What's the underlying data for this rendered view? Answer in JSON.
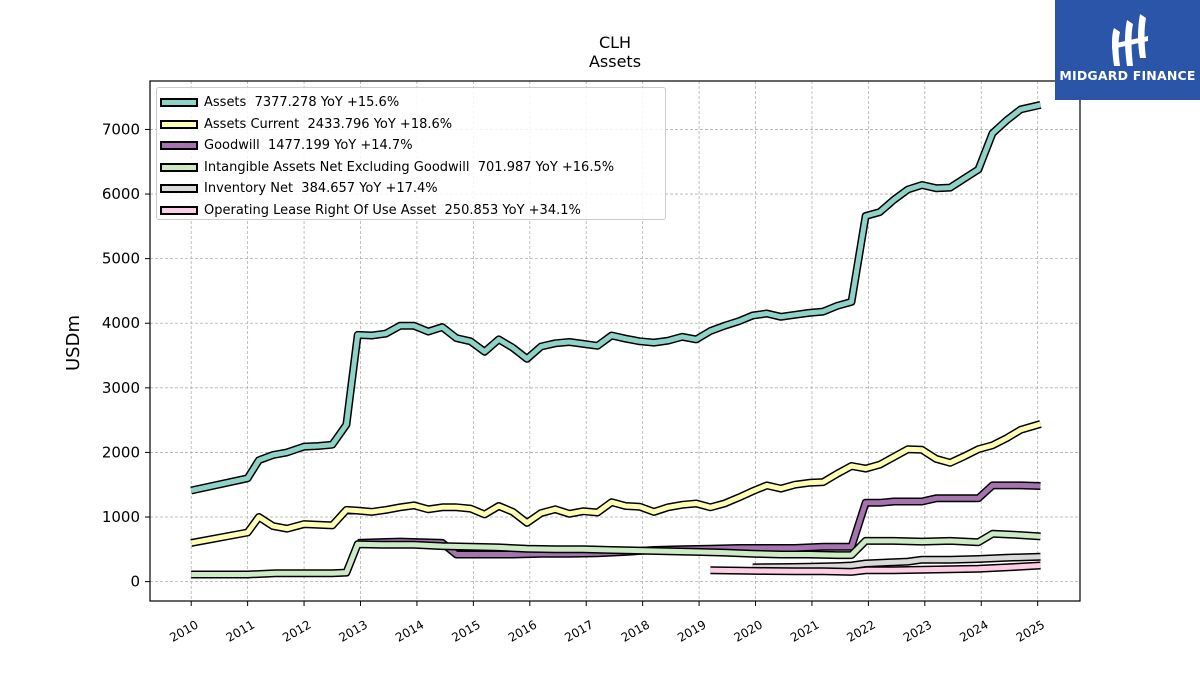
{
  "brand": {
    "name": "MIDGARD FINANCE",
    "bg": "#2b55a8"
  },
  "chart_data": {
    "type": "line",
    "title": "CLH",
    "subtitle": "Assets",
    "ylabel": "USDm",
    "xlabel": "",
    "xlim": [
      2009.27,
      2025.75
    ],
    "ylim": [
      -300,
      7750
    ],
    "xticks": [
      2010,
      2011,
      2012,
      2013,
      2014,
      2015,
      2016,
      2017,
      2018,
      2019,
      2020,
      2021,
      2022,
      2023,
      2024,
      2025
    ],
    "yticks": [
      0,
      1000,
      2000,
      3000,
      4000,
      5000,
      6000,
      7000
    ],
    "grid": true,
    "legend_position": "top-left",
    "series": [
      {
        "name": "Assets",
        "legend": "Assets  7377.278 YoY +15.6%",
        "color": "#8dd3c7",
        "points": [
          [
            2010.0,
            1410
          ],
          [
            2011.0,
            1600
          ],
          [
            2011.2,
            1880
          ],
          [
            2011.45,
            1960
          ],
          [
            2011.7,
            2000
          ],
          [
            2012.0,
            2090
          ],
          [
            2012.25,
            2100
          ],
          [
            2012.5,
            2120
          ],
          [
            2012.75,
            2430
          ],
          [
            2012.95,
            3820
          ],
          [
            2013.2,
            3810
          ],
          [
            2013.45,
            3840
          ],
          [
            2013.7,
            3960
          ],
          [
            2013.95,
            3960
          ],
          [
            2014.2,
            3870
          ],
          [
            2014.45,
            3940
          ],
          [
            2014.7,
            3770
          ],
          [
            2014.95,
            3720
          ],
          [
            2015.2,
            3560
          ],
          [
            2015.45,
            3750
          ],
          [
            2015.7,
            3620
          ],
          [
            2015.95,
            3450
          ],
          [
            2016.2,
            3640
          ],
          [
            2016.45,
            3690
          ],
          [
            2016.7,
            3710
          ],
          [
            2016.95,
            3680
          ],
          [
            2017.2,
            3650
          ],
          [
            2017.45,
            3810
          ],
          [
            2017.7,
            3760
          ],
          [
            2017.95,
            3720
          ],
          [
            2018.2,
            3700
          ],
          [
            2018.45,
            3730
          ],
          [
            2018.7,
            3790
          ],
          [
            2018.95,
            3750
          ],
          [
            2019.2,
            3880
          ],
          [
            2019.45,
            3960
          ],
          [
            2019.7,
            4030
          ],
          [
            2019.95,
            4120
          ],
          [
            2020.2,
            4150
          ],
          [
            2020.45,
            4100
          ],
          [
            2020.7,
            4130
          ],
          [
            2020.95,
            4160
          ],
          [
            2021.2,
            4180
          ],
          [
            2021.45,
            4270
          ],
          [
            2021.7,
            4330
          ],
          [
            2021.95,
            5660
          ],
          [
            2022.2,
            5720
          ],
          [
            2022.45,
            5910
          ],
          [
            2022.7,
            6070
          ],
          [
            2022.95,
            6140
          ],
          [
            2023.2,
            6090
          ],
          [
            2023.45,
            6100
          ],
          [
            2023.7,
            6240
          ],
          [
            2023.95,
            6380
          ],
          [
            2024.2,
            6940
          ],
          [
            2024.45,
            7140
          ],
          [
            2024.7,
            7310
          ],
          [
            2025.05,
            7380
          ]
        ]
      },
      {
        "name": "Assets Current",
        "legend": "Assets Current  2433.796 YoY +18.6%",
        "color": "#ffffb3",
        "points": [
          [
            2010.0,
            600
          ],
          [
            2011.0,
            760
          ],
          [
            2011.2,
            1000
          ],
          [
            2011.45,
            860
          ],
          [
            2011.7,
            820
          ],
          [
            2012.0,
            890
          ],
          [
            2012.25,
            880
          ],
          [
            2012.5,
            870
          ],
          [
            2012.75,
            1110
          ],
          [
            2012.95,
            1100
          ],
          [
            2013.2,
            1080
          ],
          [
            2013.45,
            1110
          ],
          [
            2013.7,
            1150
          ],
          [
            2013.95,
            1180
          ],
          [
            2014.2,
            1120
          ],
          [
            2014.45,
            1150
          ],
          [
            2014.7,
            1150
          ],
          [
            2014.95,
            1130
          ],
          [
            2015.2,
            1040
          ],
          [
            2015.45,
            1170
          ],
          [
            2015.7,
            1080
          ],
          [
            2015.95,
            910
          ],
          [
            2016.2,
            1060
          ],
          [
            2016.45,
            1120
          ],
          [
            2016.7,
            1050
          ],
          [
            2016.95,
            1090
          ],
          [
            2017.2,
            1070
          ],
          [
            2017.45,
            1230
          ],
          [
            2017.7,
            1170
          ],
          [
            2017.95,
            1160
          ],
          [
            2018.2,
            1080
          ],
          [
            2018.45,
            1150
          ],
          [
            2018.7,
            1190
          ],
          [
            2018.95,
            1210
          ],
          [
            2019.2,
            1150
          ],
          [
            2019.45,
            1210
          ],
          [
            2019.7,
            1300
          ],
          [
            2019.95,
            1400
          ],
          [
            2020.2,
            1490
          ],
          [
            2020.45,
            1440
          ],
          [
            2020.7,
            1500
          ],
          [
            2020.95,
            1530
          ],
          [
            2021.2,
            1540
          ],
          [
            2021.45,
            1670
          ],
          [
            2021.7,
            1790
          ],
          [
            2021.95,
            1750
          ],
          [
            2022.2,
            1810
          ],
          [
            2022.45,
            1930
          ],
          [
            2022.7,
            2050
          ],
          [
            2022.95,
            2040
          ],
          [
            2023.2,
            1900
          ],
          [
            2023.45,
            1840
          ],
          [
            2023.7,
            1940
          ],
          [
            2023.95,
            2050
          ],
          [
            2024.2,
            2110
          ],
          [
            2024.45,
            2220
          ],
          [
            2024.7,
            2350
          ],
          [
            2025.05,
            2440
          ]
        ]
      },
      {
        "name": "Goodwill",
        "legend": "Goodwill  1477.199 YoY +14.7%",
        "color": "#bebada",
        "stroke": "#a673b0",
        "points": [
          [
            2012.95,
            600
          ],
          [
            2013.7,
            620
          ],
          [
            2014.45,
            600
          ],
          [
            2014.7,
            420
          ],
          [
            2015.2,
            420
          ],
          [
            2015.7,
            420
          ],
          [
            2016.2,
            430
          ],
          [
            2016.7,
            430
          ],
          [
            2017.2,
            440
          ],
          [
            2017.7,
            460
          ],
          [
            2018.2,
            490
          ],
          [
            2018.7,
            500
          ],
          [
            2019.2,
            510
          ],
          [
            2019.7,
            520
          ],
          [
            2020.2,
            520
          ],
          [
            2020.7,
            520
          ],
          [
            2021.2,
            540
          ],
          [
            2021.7,
            540
          ],
          [
            2021.95,
            1220
          ],
          [
            2022.2,
            1220
          ],
          [
            2022.45,
            1240
          ],
          [
            2022.7,
            1240
          ],
          [
            2022.95,
            1240
          ],
          [
            2023.2,
            1290
          ],
          [
            2023.7,
            1290
          ],
          [
            2023.95,
            1290
          ],
          [
            2024.2,
            1490
          ],
          [
            2024.7,
            1490
          ],
          [
            2025.05,
            1480
          ]
        ]
      },
      {
        "name": "Intangible Assets Net Excluding Goodwill",
        "legend": "Intangible Assets Net Excluding Goodwill  701.987 YoY +16.5%",
        "color": "#ccebc5",
        "points": [
          [
            2010.0,
            110
          ],
          [
            2011.0,
            110
          ],
          [
            2011.5,
            130
          ],
          [
            2012.0,
            130
          ],
          [
            2012.5,
            130
          ],
          [
            2012.75,
            140
          ],
          [
            2012.95,
            580
          ],
          [
            2013.45,
            570
          ],
          [
            2013.95,
            570
          ],
          [
            2014.45,
            550
          ],
          [
            2014.95,
            540
          ],
          [
            2015.45,
            530
          ],
          [
            2015.95,
            510
          ],
          [
            2016.45,
            500
          ],
          [
            2016.95,
            500
          ],
          [
            2017.45,
            490
          ],
          [
            2017.95,
            480
          ],
          [
            2018.45,
            470
          ],
          [
            2018.95,
            460
          ],
          [
            2019.45,
            450
          ],
          [
            2019.95,
            430
          ],
          [
            2020.45,
            420
          ],
          [
            2020.95,
            420
          ],
          [
            2021.45,
            410
          ],
          [
            2021.7,
            410
          ],
          [
            2021.95,
            630
          ],
          [
            2022.45,
            630
          ],
          [
            2022.95,
            620
          ],
          [
            2023.45,
            630
          ],
          [
            2023.95,
            610
          ],
          [
            2024.2,
            740
          ],
          [
            2024.7,
            720
          ],
          [
            2025.05,
            700
          ]
        ]
      },
      {
        "name": "Inventory Net",
        "legend": "Inventory Net  384.657 YoY +17.4%",
        "color": "#d9d9d9",
        "points": [
          [
            2019.95,
            220
          ],
          [
            2020.45,
            225
          ],
          [
            2020.95,
            230
          ],
          [
            2021.45,
            240
          ],
          [
            2021.7,
            250
          ],
          [
            2021.95,
            280
          ],
          [
            2022.45,
            300
          ],
          [
            2022.7,
            310
          ],
          [
            2022.95,
            340
          ],
          [
            2023.45,
            340
          ],
          [
            2023.95,
            350
          ],
          [
            2024.45,
            370
          ],
          [
            2025.05,
            385
          ]
        ]
      },
      {
        "name": "Operating Lease Right Of Use Asset",
        "legend": "Operating Lease Right Of Use Asset  250.853 YoY +34.1%",
        "color": "#fccde5",
        "points": [
          [
            2019.2,
            175
          ],
          [
            2019.7,
            170
          ],
          [
            2020.2,
            165
          ],
          [
            2020.7,
            160
          ],
          [
            2021.2,
            160
          ],
          [
            2021.7,
            150
          ],
          [
            2021.95,
            175
          ],
          [
            2022.45,
            175
          ],
          [
            2022.95,
            185
          ],
          [
            2023.45,
            190
          ],
          [
            2023.95,
            200
          ],
          [
            2024.45,
            220
          ],
          [
            2025.05,
            250
          ]
        ]
      }
    ]
  }
}
